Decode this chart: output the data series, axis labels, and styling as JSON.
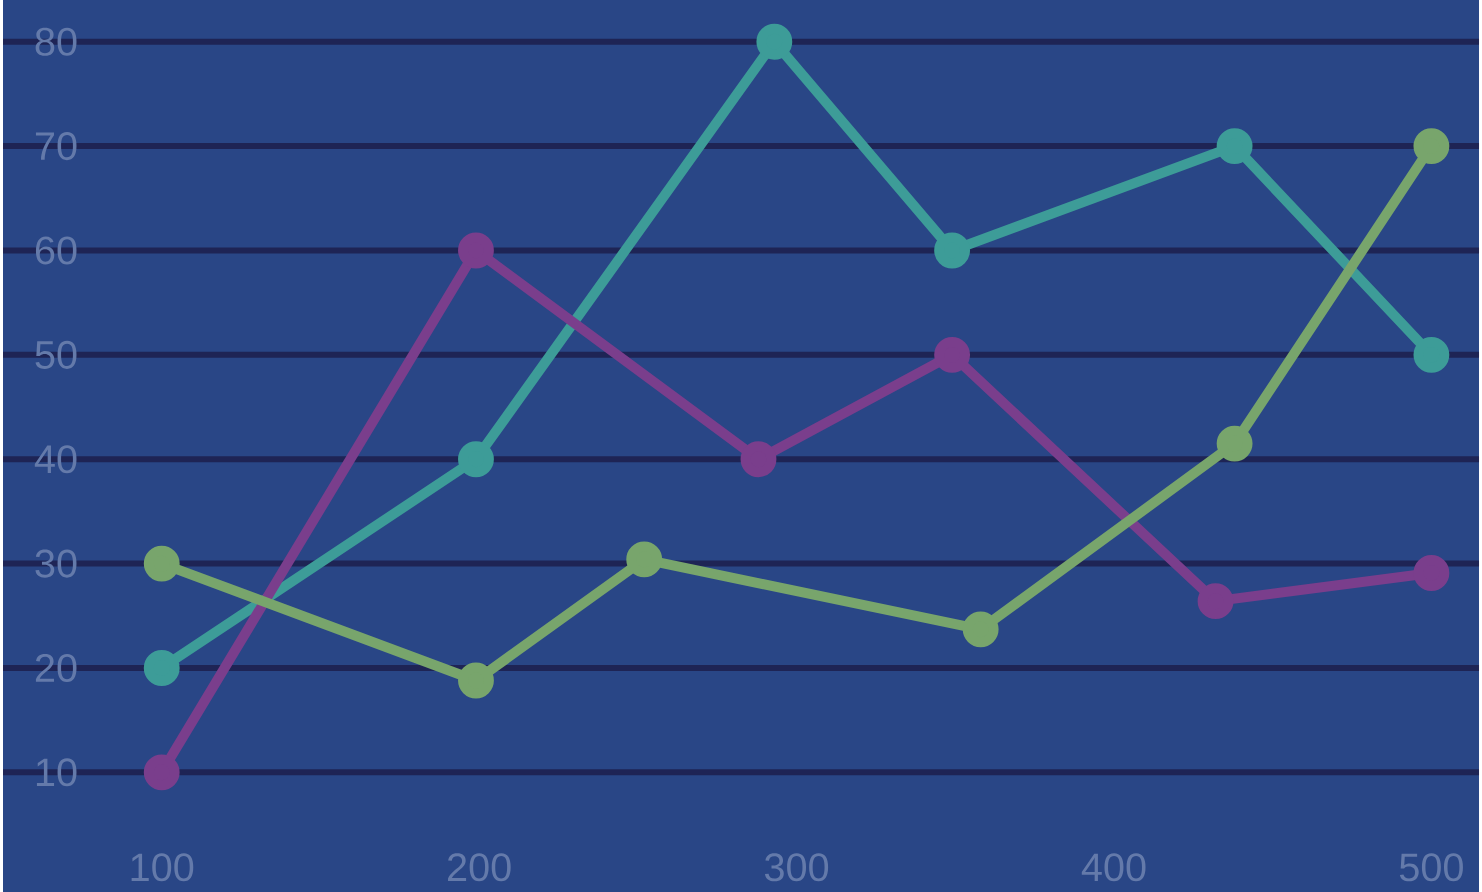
{
  "chart_data": {
    "type": "line",
    "xlim": [
      50,
      515
    ],
    "ylim": [
      -1.5,
      84
    ],
    "xticks": [
      100,
      200,
      300,
      400,
      500
    ],
    "yticks": [
      10,
      20,
      30,
      40,
      50,
      60,
      70,
      80
    ],
    "grid": "y",
    "marker": "circle",
    "line_style": "solid",
    "series": [
      {
        "color": "#3d9c98",
        "x": [
          100,
          199,
          293,
          349,
          438,
          500
        ],
        "values": [
          20,
          40,
          80,
          60,
          70,
          50
        ]
      },
      {
        "color": "#7a3e8c",
        "x": [
          100,
          199,
          288,
          349,
          432,
          500
        ],
        "values": [
          10,
          60,
          40,
          50,
          26.4,
          29.1
        ]
      },
      {
        "color": "#78a56c",
        "x": [
          100,
          199,
          252,
          358,
          438,
          500
        ],
        "values": [
          30,
          18.8,
          30.4,
          23.7,
          41.5,
          70
        ]
      }
    ]
  }
}
